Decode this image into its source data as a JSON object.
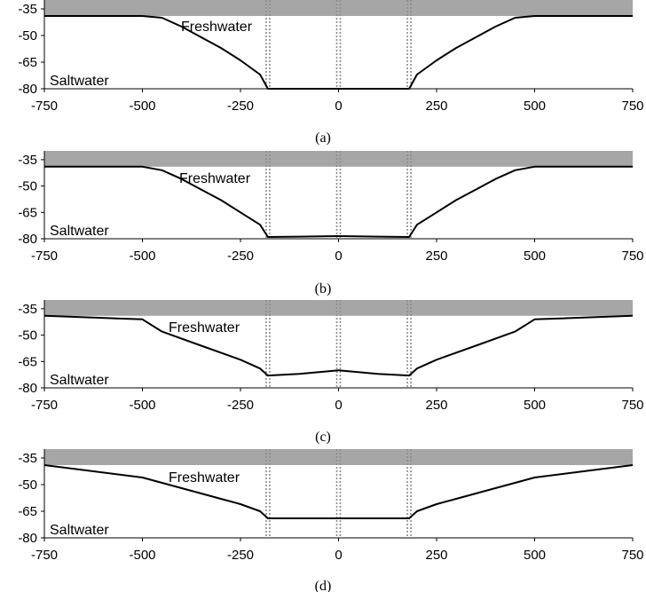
{
  "chart_data": [
    {
      "type": "line",
      "caption": "(a)",
      "zone_labels": {
        "upper": "Freshwater",
        "lower": "Saltwater"
      },
      "xlim": [
        -750,
        750
      ],
      "ylim": [
        -80,
        -30
      ],
      "x_ticks": [
        -750,
        -500,
        -250,
        0,
        250,
        500,
        750
      ],
      "x_tick_labels": [
        "-750",
        "-500",
        "-250",
        "0",
        "250",
        "500",
        "750"
      ],
      "y_ticks": [
        -35,
        -50,
        -65,
        -80
      ],
      "y_tick_labels": [
        "-35",
        "-50",
        "-65",
        "-80"
      ],
      "shaded_band": [
        -39,
        -30
      ],
      "vertical_markers": [
        -180,
        0,
        180
      ],
      "series": [
        {
          "x": [
            -750,
            -500,
            -450,
            -400,
            -350,
            -300,
            -250,
            -200,
            -180,
            180,
            200,
            250,
            300,
            350,
            400,
            450,
            500,
            750
          ],
          "y": [
            -39,
            -39,
            -40,
            -45,
            -51,
            -57,
            -64,
            -72,
            -80,
            -80,
            -72,
            -64,
            -57,
            -51,
            -45,
            -40,
            -39,
            -39
          ]
        }
      ]
    },
    {
      "type": "line",
      "caption": "(b)",
      "zone_labels": {
        "upper": "Freshwater",
        "lower": "Saltwater"
      },
      "xlim": [
        -750,
        750
      ],
      "ylim": [
        -80,
        -30
      ],
      "x_ticks": [
        -750,
        -500,
        -250,
        0,
        250,
        500,
        750
      ],
      "x_tick_labels": [
        "-750",
        "-500",
        "-250",
        "0",
        "250",
        "500",
        "750"
      ],
      "y_ticks": [
        -35,
        -50,
        -65,
        -80
      ],
      "y_tick_labels": [
        "-35",
        "-50",
        "-65",
        "-80"
      ],
      "shaded_band": [
        -39,
        -30
      ],
      "vertical_markers": [
        -180,
        0,
        180
      ],
      "series": [
        {
          "x": [
            -750,
            -500,
            -450,
            -400,
            -350,
            -300,
            -250,
            -200,
            -180,
            -100,
            0,
            100,
            180,
            200,
            250,
            300,
            350,
            400,
            450,
            500,
            750
          ],
          "y": [
            -39,
            -39,
            -41,
            -46,
            -52,
            -58,
            -65,
            -72,
            -79,
            -78.8,
            -78.5,
            -78.8,
            -79,
            -72,
            -65,
            -58,
            -52,
            -46,
            -41,
            -39,
            -39
          ]
        }
      ]
    },
    {
      "type": "line",
      "caption": "(c)",
      "zone_labels": {
        "upper": "Freshwater",
        "lower": "Saltwater"
      },
      "xlim": [
        -750,
        750
      ],
      "ylim": [
        -80,
        -30
      ],
      "x_ticks": [
        -750,
        -500,
        -250,
        0,
        250,
        500,
        750
      ],
      "x_tick_labels": [
        "-750",
        "-500",
        "-250",
        "0",
        "250",
        "500",
        "750"
      ],
      "y_ticks": [
        -35,
        -50,
        -65,
        -80
      ],
      "y_tick_labels": [
        "-35",
        "-50",
        "-65",
        "-80"
      ],
      "shaded_band": [
        -39,
        -30
      ],
      "vertical_markers": [
        -180,
        0,
        180
      ],
      "series": [
        {
          "x": [
            -750,
            -500,
            -450,
            -350,
            -250,
            -200,
            -180,
            -100,
            0,
            100,
            180,
            200,
            250,
            350,
            450,
            500,
            750
          ],
          "y": [
            -39,
            -41,
            -48,
            -56,
            -64,
            -69,
            -73,
            -72,
            -70,
            -72,
            -73,
            -69,
            -64,
            -56,
            -48,
            -41,
            -39
          ]
        }
      ]
    },
    {
      "type": "line",
      "caption": "(d)",
      "zone_labels": {
        "upper": "Freshwater",
        "lower": "Saltwater"
      },
      "xlim": [
        -750,
        750
      ],
      "ylim": [
        -80,
        -30
      ],
      "x_ticks": [
        -750,
        -500,
        -250,
        0,
        250,
        500,
        750
      ],
      "x_tick_labels": [
        "-750",
        "-500",
        "-250",
        "0",
        "250",
        "500",
        "750"
      ],
      "y_ticks": [
        -35,
        -50,
        -65,
        -80
      ],
      "y_tick_labels": [
        "-35",
        "-50",
        "-65",
        "-80"
      ],
      "shaded_band": [
        -39,
        -30
      ],
      "vertical_markers": [
        -180,
        0,
        180
      ],
      "series": [
        {
          "x": [
            -750,
            -500,
            -350,
            -250,
            -200,
            -180,
            180,
            200,
            250,
            350,
            500,
            750
          ],
          "y": [
            -39,
            -46,
            -55,
            -61,
            -65,
            -69,
            -69,
            -65,
            -61,
            -55,
            -46,
            -39
          ]
        }
      ]
    }
  ],
  "colors": {
    "band": "#a6a6a6",
    "line": "#000000",
    "marker": "#8c8c8c",
    "axis": "#000000"
  }
}
